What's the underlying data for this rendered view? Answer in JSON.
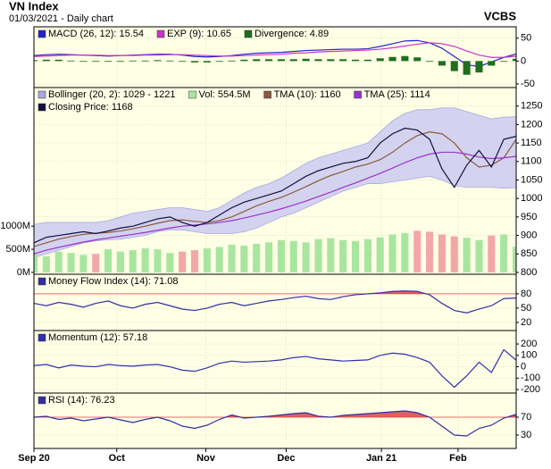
{
  "header": {
    "title": "VN Index",
    "subtitle": "01/03/2021 - Daily chart",
    "source": "VCBS"
  },
  "chart_data": [
    {
      "type": "line",
      "ylim": [
        -58,
        75
      ],
      "yticks": [
        50,
        0,
        -50
      ],
      "grid": true,
      "series": [
        {
          "type": "line",
          "name": "MACD (26, 12): 15.54",
          "color": "#2222cc",
          "values": [
            12,
            14,
            15,
            14,
            13,
            12,
            11,
            12,
            13,
            14,
            15,
            15,
            13,
            10,
            9,
            10,
            12,
            15,
            17,
            18,
            19,
            21,
            23,
            24,
            25,
            26,
            26,
            27,
            32,
            38,
            44,
            45,
            40,
            28,
            10,
            -8,
            -12,
            -2,
            8,
            15.54
          ]
        },
        {
          "type": "line",
          "name": "EXP (9): 10.65",
          "color": "#cc33cc",
          "values": [
            10,
            11,
            12,
            13,
            13,
            13,
            12,
            12,
            12,
            13,
            13,
            14,
            14,
            13,
            12,
            11,
            11,
            12,
            13,
            14,
            15,
            17,
            18,
            20,
            21,
            22,
            23,
            24,
            26,
            29,
            33,
            37,
            40,
            38,
            32,
            22,
            13,
            8,
            8,
            10.65
          ]
        },
        {
          "type": "bar",
          "name": "Divergence: 4.89",
          "color": "#1e6e1e",
          "values": [
            2,
            3,
            3,
            1,
            0,
            -1,
            -1,
            0,
            1,
            1,
            2,
            1,
            -1,
            -3,
            -3,
            -1,
            1,
            3,
            4,
            4,
            4,
            4,
            5,
            4,
            4,
            4,
            3,
            3,
            6,
            9,
            11,
            8,
            0,
            -10,
            -22,
            -30,
            -25,
            -10,
            0,
            4.89
          ]
        }
      ]
    },
    {
      "type": "line",
      "ylim": [
        795,
        1300
      ],
      "yticks": [
        1250,
        1200,
        1150,
        1100,
        1050,
        1000,
        950,
        900,
        850,
        800
      ],
      "y2lim": [
        -40,
        4000
      ],
      "y2ticks": [
        {
          "value": 1000,
          "label": "1000M"
        },
        {
          "value": 500,
          "label": "500M"
        },
        {
          "value": 0,
          "label": "0M"
        }
      ],
      "grid": true,
      "series": [
        {
          "type": "band",
          "name": "Bollinger (20, 2): 1029 - 1221",
          "color": "#c4c4f2",
          "upper": [
            930,
            935,
            935,
            935,
            935,
            935,
            940,
            950,
            960,
            965,
            970,
            975,
            975,
            970,
            965,
            975,
            995,
            1015,
            1030,
            1040,
            1055,
            1075,
            1095,
            1110,
            1120,
            1130,
            1140,
            1150,
            1180,
            1210,
            1230,
            1240,
            1240,
            1245,
            1245,
            1235,
            1225,
            1215,
            1220,
            1221
          ],
          "lower": [
            840,
            850,
            860,
            870,
            880,
            885,
            888,
            890,
            895,
            900,
            910,
            915,
            915,
            910,
            905,
            905,
            905,
            910,
            920,
            935,
            950,
            960,
            975,
            990,
            1005,
            1020,
            1030,
            1040,
            1040,
            1045,
            1050,
            1055,
            1060,
            1050,
            1035,
            1030,
            1030,
            1030,
            1028,
            1029
          ]
        },
        {
          "type": "bar",
          "axis": "y2",
          "name": "Vol: 554.5M",
          "color": "#a8e6a0",
          "down_color": "#f2a8a8",
          "values": [
            400,
            350,
            450,
            420,
            380,
            400,
            500,
            450,
            480,
            520,
            500,
            420,
            450,
            480,
            520,
            550,
            600,
            580,
            620,
            650,
            700,
            680,
            650,
            720,
            740,
            700,
            680,
            720,
            760,
            820,
            850,
            900,
            880,
            820,
            780,
            750,
            700,
            800,
            820,
            554.5
          ]
        },
        {
          "type": "line",
          "name": "TMA (10): 1160",
          "color": "#8b5a3c",
          "values": [
            870,
            880,
            890,
            897,
            903,
            906,
            908,
            912,
            918,
            925,
            933,
            940,
            942,
            938,
            935,
            940,
            950,
            965,
            980,
            992,
            1003,
            1017,
            1032,
            1048,
            1062,
            1073,
            1085,
            1093,
            1105,
            1125,
            1150,
            1170,
            1180,
            1175,
            1150,
            1110,
            1085,
            1090,
            1110,
            1160
          ]
        },
        {
          "type": "line",
          "name": "TMA (25): 1114",
          "color": "#9932cc",
          "values": [
            850,
            860,
            868,
            875,
            882,
            888,
            893,
            898,
            903,
            908,
            914,
            920,
            925,
            928,
            931,
            935,
            940,
            947,
            955,
            963,
            972,
            982,
            993,
            1005,
            1017,
            1030,
            1042,
            1055,
            1068,
            1082,
            1097,
            1110,
            1120,
            1125,
            1125,
            1120,
            1112,
            1108,
            1110,
            1114
          ]
        },
        {
          "type": "line",
          "name": "Closing Price: 1168",
          "color": "#101040",
          "values": [
            880,
            895,
            900,
            905,
            910,
            905,
            912,
            920,
            925,
            935,
            945,
            950,
            935,
            925,
            935,
            955,
            975,
            990,
            1000,
            1010,
            1020,
            1040,
            1060,
            1075,
            1085,
            1095,
            1100,
            1110,
            1150,
            1175,
            1190,
            1185,
            1160,
            1080,
            1030,
            1090,
            1130,
            1085,
            1160,
            1168
          ]
        }
      ]
    },
    {
      "type": "line",
      "ylim": [
        3,
        121
      ],
      "yticks": [
        80,
        50,
        20
      ],
      "grid": true,
      "series": [
        {
          "type": "line",
          "name": "Money Flow Index (14): 71.08",
          "color": "#3030a0",
          "fill_above": 80,
          "fill_color": "#e06060",
          "values": [
            60,
            55,
            62,
            58,
            52,
            60,
            65,
            55,
            50,
            58,
            62,
            55,
            48,
            45,
            50,
            58,
            62,
            55,
            60,
            65,
            68,
            72,
            75,
            70,
            68,
            74,
            78,
            80,
            82,
            85,
            86,
            85,
            78,
            60,
            45,
            40,
            48,
            55,
            70,
            71.08
          ]
        }
      ]
    },
    {
      "type": "line",
      "ylim": [
        -231,
        318
      ],
      "yticks": [
        200,
        100,
        0,
        -100,
        -200
      ],
      "grid": true,
      "series": [
        {
          "type": "line",
          "name": "Momentum (12): 57.18",
          "color": "#3030b0",
          "values": [
            10,
            20,
            -10,
            15,
            5,
            0,
            20,
            10,
            5,
            15,
            20,
            0,
            -30,
            -40,
            -10,
            30,
            50,
            40,
            45,
            50,
            60,
            80,
            90,
            70,
            60,
            50,
            55,
            60,
            100,
            120,
            110,
            80,
            40,
            -80,
            -180,
            -80,
            40,
            -50,
            150,
            57.18
          ]
        }
      ]
    },
    {
      "type": "line",
      "ylim": [
        0,
        124
      ],
      "yticks": [
        70,
        30
      ],
      "grid": true,
      "xlim": [
        0,
        39
      ],
      "xticks": [
        {
          "value": 0,
          "label": "Sep 20"
        },
        {
          "value": 6.7,
          "label": "Oct"
        },
        {
          "value": 13.9,
          "label": "Nov"
        },
        {
          "value": 20.4,
          "label": "Dec"
        },
        {
          "value": 28.1,
          "label": "Jan 21"
        },
        {
          "value": 34.3,
          "label": "Feb"
        }
      ],
      "series": [
        {
          "type": "line",
          "name": "RSI (14): 76.23",
          "color": "#3030a0",
          "fill_above": 70,
          "fill_color": "#e06060",
          "values": [
            70,
            72,
            65,
            68,
            62,
            66,
            70,
            64,
            58,
            65,
            70,
            62,
            50,
            45,
            52,
            65,
            75,
            68,
            70,
            72,
            75,
            78,
            80,
            72,
            70,
            74,
            76,
            78,
            80,
            82,
            84,
            80,
            70,
            50,
            30,
            28,
            45,
            52,
            68,
            76.23
          ]
        }
      ]
    }
  ]
}
